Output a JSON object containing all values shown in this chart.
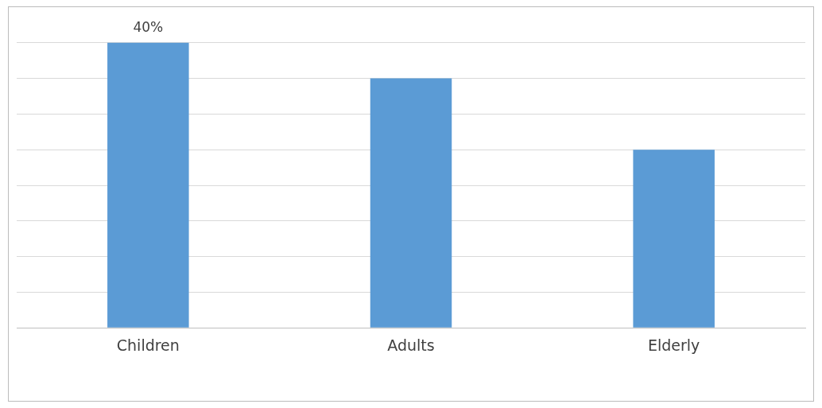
{
  "chart_data": {
    "type": "bar",
    "categories": [
      "Children",
      "Adults",
      "Elderly"
    ],
    "values": [
      40,
      35,
      25
    ],
    "value_labels": [
      "40%",
      null,
      null
    ],
    "color": "#5b9bd5",
    "ylim": [
      0,
      45
    ],
    "yticks": [
      {
        "value": 0,
        "label": null
      },
      {
        "value": 5,
        "label": null
      },
      {
        "value": 10,
        "label": null
      },
      {
        "value": 15,
        "label": null
      },
      {
        "value": 20,
        "label": null
      },
      {
        "value": 25,
        "label": null
      },
      {
        "value": 30,
        "label": null
      },
      {
        "value": 35,
        "label": null
      },
      {
        "value": 40,
        "label": null
      }
    ],
    "tick_labels": "x",
    "grid": "y",
    "legend": false
  }
}
